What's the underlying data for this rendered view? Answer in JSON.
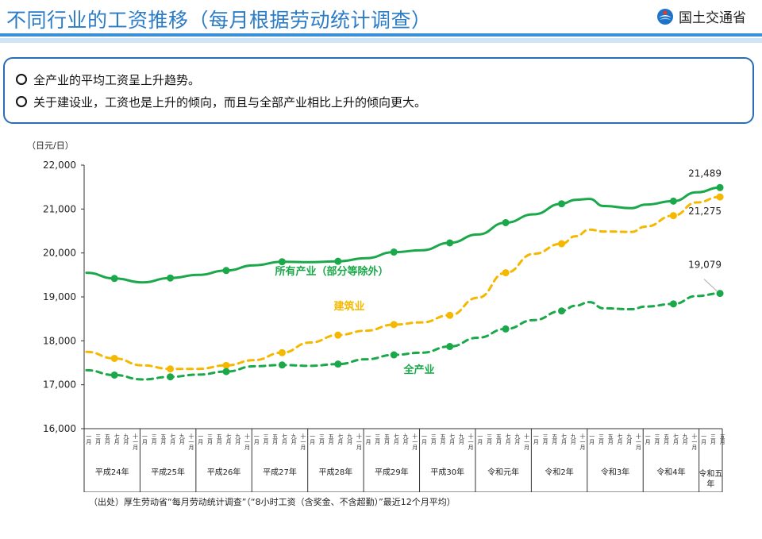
{
  "header": {
    "title": "不同行业的工资推移（每月根据劳动统计调查）",
    "logo_text": "国土交通省",
    "logo_icon": "ministry-logo-icon"
  },
  "summary": {
    "bullets": [
      "全产业的平均工资呈上升趋势。",
      "关于建设业，工资也是上升的倾向，而且与全部产业相比上升的倾向更大。"
    ]
  },
  "source_note": "（出处）厚生劳动省“每月劳动统计调查”（“8小时工资（含奖金、不含超勤）”最近12个月平均）",
  "colors": {
    "all_industries_ex": "#1aa84a",
    "construction": "#f5b800",
    "all_industries": "#1aa84a",
    "accent": "#2b7cc7"
  },
  "chart_data": {
    "type": "line",
    "ylabel": "（日元/日）",
    "ylim": [
      16000,
      22000
    ],
    "yticks": [
      "16,000",
      "17,000",
      "18,000",
      "19,000",
      "20,000",
      "21,000",
      "22,000"
    ],
    "grid": false,
    "month_labels": [
      "一月",
      "三月",
      "五月",
      "七月",
      "九月",
      "十一月"
    ],
    "year_labels": [
      "平成24年",
      "平成25年",
      "平成26年",
      "平成27年",
      "平成28年",
      "平成29年",
      "平成30年",
      "令和元年",
      "令和2年",
      "令和3年",
      "令和4年",
      "令和五年"
    ],
    "x_range": [
      "2012-01",
      "2023-05"
    ],
    "series": [
      {
        "name": "所有产业（部分等除外）",
        "style": "solid",
        "end_label": "21,489",
        "values": [
          [
            "2012-01",
            19550
          ],
          [
            "2012-07",
            19420
          ],
          [
            "2013-01",
            19330
          ],
          [
            "2013-07",
            19430
          ],
          [
            "2014-01",
            19500
          ],
          [
            "2014-07",
            19600
          ],
          [
            "2015-01",
            19720
          ],
          [
            "2015-07",
            19800
          ],
          [
            "2016-01",
            19790
          ],
          [
            "2016-07",
            19810
          ],
          [
            "2017-01",
            19880
          ],
          [
            "2017-07",
            20020
          ],
          [
            "2018-01",
            20060
          ],
          [
            "2018-07",
            20230
          ],
          [
            "2019-01",
            20420
          ],
          [
            "2019-07",
            20690
          ],
          [
            "2020-01",
            20880
          ],
          [
            "2020-07",
            21120
          ],
          [
            "2020-10",
            21210
          ],
          [
            "2021-01",
            21230
          ],
          [
            "2021-04",
            21070
          ],
          [
            "2021-10",
            21020
          ],
          [
            "2022-01",
            21100
          ],
          [
            "2022-07",
            21180
          ],
          [
            "2022-12",
            21380
          ],
          [
            "2023-05",
            21489
          ]
        ]
      },
      {
        "name": "建筑业",
        "style": "dashed",
        "end_label": "21,275",
        "values": [
          [
            "2012-01",
            17750
          ],
          [
            "2012-07",
            17600
          ],
          [
            "2013-01",
            17440
          ],
          [
            "2013-07",
            17360
          ],
          [
            "2014-01",
            17360
          ],
          [
            "2014-07",
            17440
          ],
          [
            "2015-01",
            17560
          ],
          [
            "2015-07",
            17730
          ],
          [
            "2016-01",
            17960
          ],
          [
            "2016-07",
            18130
          ],
          [
            "2017-01",
            18230
          ],
          [
            "2017-07",
            18370
          ],
          [
            "2018-01",
            18420
          ],
          [
            "2018-07",
            18580
          ],
          [
            "2019-01",
            18980
          ],
          [
            "2019-07",
            19550
          ],
          [
            "2020-01",
            19980
          ],
          [
            "2020-07",
            20210
          ],
          [
            "2020-10",
            20380
          ],
          [
            "2021-01",
            20530
          ],
          [
            "2021-04",
            20490
          ],
          [
            "2021-10",
            20480
          ],
          [
            "2022-01",
            20600
          ],
          [
            "2022-07",
            20850
          ],
          [
            "2022-12",
            21150
          ],
          [
            "2023-05",
            21275
          ]
        ]
      },
      {
        "name": "全产业",
        "style": "dashed",
        "end_label": "19,079",
        "values": [
          [
            "2012-01",
            17330
          ],
          [
            "2012-07",
            17220
          ],
          [
            "2013-01",
            17120
          ],
          [
            "2013-07",
            17180
          ],
          [
            "2014-01",
            17230
          ],
          [
            "2014-07",
            17300
          ],
          [
            "2015-01",
            17420
          ],
          [
            "2015-07",
            17450
          ],
          [
            "2016-01",
            17430
          ],
          [
            "2016-07",
            17470
          ],
          [
            "2017-01",
            17580
          ],
          [
            "2017-07",
            17680
          ],
          [
            "2018-01",
            17730
          ],
          [
            "2018-07",
            17870
          ],
          [
            "2019-01",
            18070
          ],
          [
            "2019-07",
            18270
          ],
          [
            "2020-01",
            18470
          ],
          [
            "2020-07",
            18680
          ],
          [
            "2020-10",
            18800
          ],
          [
            "2021-01",
            18880
          ],
          [
            "2021-04",
            18740
          ],
          [
            "2021-10",
            18720
          ],
          [
            "2022-01",
            18780
          ],
          [
            "2022-07",
            18840
          ],
          [
            "2022-12",
            19020
          ],
          [
            "2023-05",
            19079
          ]
        ]
      }
    ],
    "series_labels": [
      "所有产业（部分等除外）",
      "建筑业",
      "全产业"
    ]
  }
}
